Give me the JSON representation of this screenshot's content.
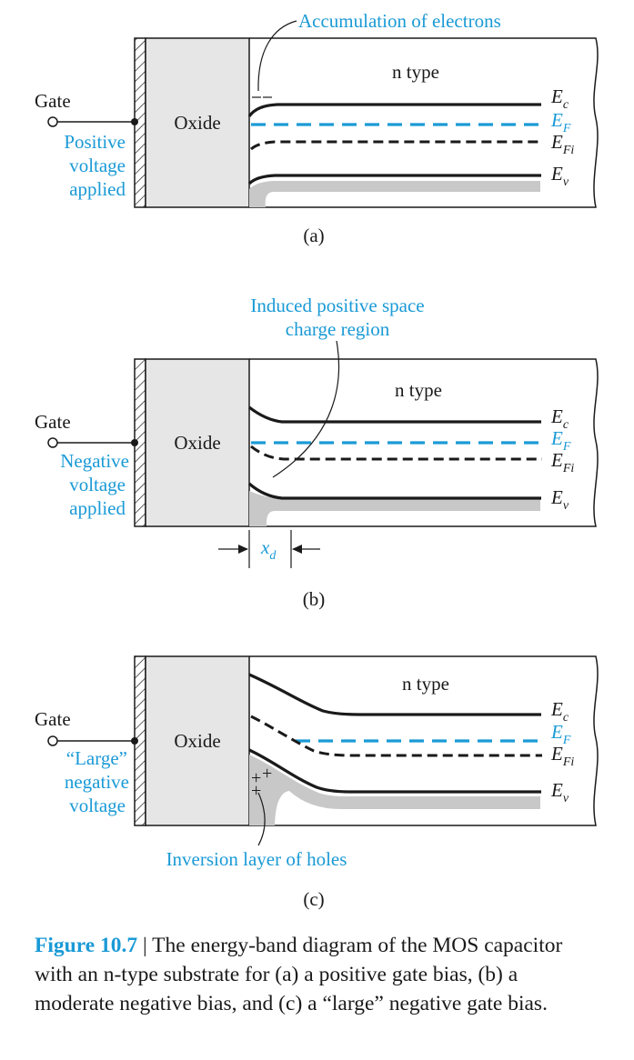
{
  "panels": [
    {
      "id": "a",
      "caption": "(a)",
      "oxide_label": "Oxide",
      "gate_label": "Gate",
      "bias_lines": [
        "Positive",
        "voltage",
        "applied"
      ],
      "substrate_label": "n type",
      "annotation": "Accumulation of electrons",
      "band_labels": {
        "ec": "E",
        "ec_sub": "c",
        "ef": "E",
        "ef_sub": "F",
        "efi": "E",
        "efi_sub": "Fi",
        "ev": "E",
        "ev_sub": "v"
      }
    },
    {
      "id": "b",
      "caption": "(b)",
      "oxide_label": "Oxide",
      "gate_label": "Gate",
      "bias_lines": [
        "Negative",
        "voltage",
        "applied"
      ],
      "substrate_label": "n type",
      "annotation_lines": [
        "Induced positive space",
        "charge region"
      ],
      "depletion_label": "x",
      "depletion_sub": "d",
      "band_labels": {
        "ec": "E",
        "ec_sub": "c",
        "ef": "E",
        "ef_sub": "F",
        "efi": "E",
        "efi_sub": "Fi",
        "ev": "E",
        "ev_sub": "v"
      }
    },
    {
      "id": "c",
      "caption": "(c)",
      "oxide_label": "Oxide",
      "gate_label": "Gate",
      "bias_lines": [
        "“Large”",
        "negative",
        "voltage"
      ],
      "substrate_label": "n type",
      "annotation": "Inversion layer of holes",
      "band_labels": {
        "ec": "E",
        "ec_sub": "c",
        "ef": "E",
        "ef_sub": "F",
        "efi": "E",
        "efi_sub": "Fi",
        "ev": "E",
        "ev_sub": "v"
      }
    }
  ],
  "figure_caption": {
    "number": "Figure 10.7",
    "separator": " | ",
    "text": "The energy-band diagram of the MOS capacitor with an n-type substrate for (a) a positive gate bias, (b) a moderate negative bias, and (c) a “large” negative gate bias."
  },
  "colors": {
    "accent": "#1a9ad6",
    "oxide_fill": "#e6e6e6",
    "band_shade": "#c8c8c8",
    "ink": "#1a1a1a"
  }
}
